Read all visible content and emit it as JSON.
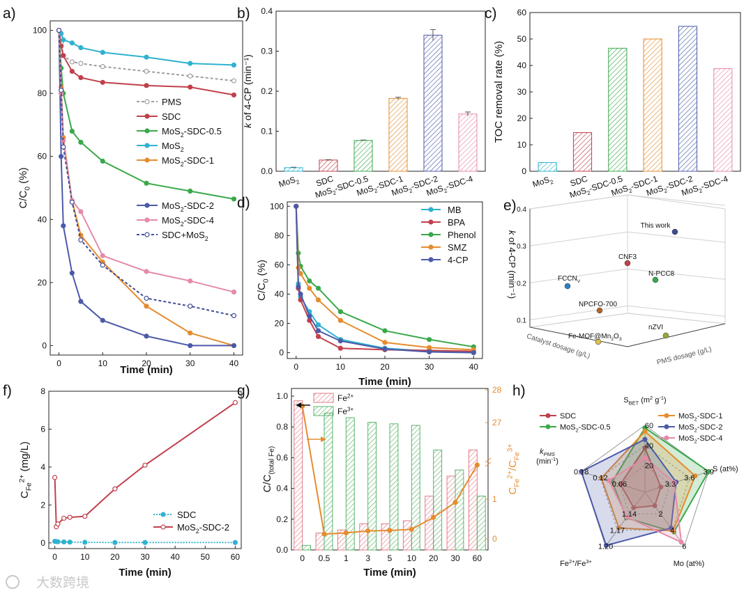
{
  "watermark": "大数跨境",
  "chart_data": [
    {
      "panel": "a)",
      "type": "line",
      "xlabel": "Time (min)",
      "ylabel_parts": [
        "C/C",
        "0",
        " (%)"
      ],
      "xlim": [
        -2,
        42
      ],
      "ylim": [
        -3,
        103
      ],
      "xticks": [
        0,
        10,
        20,
        30,
        40
      ],
      "yticks": [
        0,
        20,
        40,
        60,
        80,
        100
      ],
      "x": [
        0,
        0.5,
        1,
        3,
        5,
        10,
        20,
        30,
        40
      ],
      "series": [
        {
          "name": "PMS",
          "color": "#9e9e9e",
          "dashed": true,
          "hollow": true,
          "values": [
            100,
            96,
            92,
            90,
            89.5,
            88.5,
            87,
            85.5,
            84
          ]
        },
        {
          "name": "SDC",
          "color": "#c0404b",
          "values": [
            100,
            95,
            92,
            87,
            85,
            83.5,
            82.5,
            82,
            79.5
          ]
        },
        {
          "name": "MoS2-SDC-0.5",
          "color": "#3aa84a",
          "values": [
            100,
            88,
            80,
            68,
            64.5,
            58.5,
            51.5,
            49,
            46.5
          ]
        },
        {
          "name": "MoS2",
          "color": "#2fb2cf",
          "values": [
            100,
            99,
            97,
            96,
            94.5,
            93,
            91.5,
            89.5,
            89
          ]
        },
        {
          "name": "MoS2-SDC-1",
          "color": "#e58c2e",
          "values": [
            100,
            82,
            66,
            46,
            35,
            26.5,
            12.5,
            4,
            0
          ]
        },
        {
          "name": "MoS2-SDC-2",
          "color": "#4c5aa8",
          "values": [
            100,
            60,
            38,
            23,
            14,
            8,
            3,
            0,
            0
          ]
        },
        {
          "name": "MoS2-SDC-4",
          "color": "#e58aa8",
          "values": [
            100,
            80,
            65,
            46,
            42.5,
            28.5,
            23.5,
            20.5,
            17
          ]
        },
        {
          "name": "SDC+MoS2",
          "color": "#3e4c95",
          "dashed": true,
          "hollow": true,
          "values": [
            100,
            81,
            63,
            45.5,
            33.5,
            25.5,
            15,
            12.5,
            9.5
          ]
        }
      ],
      "legend_upper": [
        {
          "name": "PMS",
          "display": [
            "PMS"
          ]
        },
        {
          "name": "SDC",
          "display": [
            "SDC"
          ]
        },
        {
          "name": "MoS2-SDC-0.5",
          "display": [
            "MoS",
            "2",
            "-SDC-0.5"
          ]
        },
        {
          "name": "MoS2",
          "display": [
            "MoS",
            "2"
          ]
        },
        {
          "name": "MoS2-SDC-1",
          "display": [
            "MoS",
            "2",
            "-SDC-1"
          ]
        }
      ],
      "legend_lower": [
        {
          "name": "MoS2-SDC-2",
          "display": [
            "MoS",
            "2",
            "-SDC-2"
          ]
        },
        {
          "name": "MoS2-SDC-4",
          "display": [
            "MoS",
            "2",
            "-SDC-4"
          ]
        },
        {
          "name": "SDC+MoS2",
          "display": [
            "SDC+MoS",
            "2"
          ]
        }
      ]
    },
    {
      "panel": "b)",
      "type": "bar",
      "ylabel": "k of 4-CP (min⁻¹)",
      "ylim": [
        0,
        0.4
      ],
      "yticks": [
        0.0,
        0.1,
        0.2,
        0.3,
        0.4
      ],
      "categories": [
        "MoS2",
        "SDC",
        "MoS2-SDC-0.5",
        "MoS2-SDC-1",
        "MoS2-SDC-2",
        "MoS2-SDC-4"
      ],
      "category_labels": [
        [
          "MoS",
          "2"
        ],
        [
          "SDC"
        ],
        [
          "MoS",
          "2",
          "-SDC-0.5"
        ],
        [
          "MoS",
          "2",
          "-SDC-1"
        ],
        [
          "MoS",
          "2",
          "-SDC-2"
        ],
        [
          "MoS",
          "2",
          "-SDC-4"
        ]
      ],
      "values": [
        0.009,
        0.028,
        0.077,
        0.182,
        0.34,
        0.143
      ],
      "errors": [
        0.001,
        0.001,
        0.001,
        0.003,
        0.014,
        0.005
      ],
      "colors": [
        "#2fb2cf",
        "#c0404b",
        "#3aa84a",
        "#e58c2e",
        "#4c5aa8",
        "#e58aa8"
      ]
    },
    {
      "panel": "c)",
      "type": "bar",
      "ylabel": "TOC removal rate (%)",
      "ylim": [
        0,
        60
      ],
      "yticks": [
        0,
        10,
        20,
        30,
        40,
        50,
        60
      ],
      "categories": [
        "MoS2",
        "SDC",
        "MoS2-SDC-0.5",
        "MoS2-SDC-1",
        "MoS2-SDC-2",
        "MoS2-SDC-4"
      ],
      "category_labels": [
        [
          "MoS",
          "2"
        ],
        [
          "SDC"
        ],
        [
          "MoS",
          "2",
          "-SDC-0.5"
        ],
        [
          "MoS",
          "2",
          "-SDC-1"
        ],
        [
          "MoS",
          "2",
          "-SDC-2"
        ],
        [
          "MoS",
          "2",
          "-SDC-4"
        ]
      ],
      "values": [
        3.3,
        14.6,
        46.5,
        50,
        54.8,
        38.8
      ],
      "colors": [
        "#2fb2cf",
        "#c0404b",
        "#3aa84a",
        "#e58c2e",
        "#4c5aa8",
        "#e58aa8"
      ]
    },
    {
      "panel": "d)",
      "type": "line",
      "xlabel": "Time (min)",
      "ylabel_parts": [
        "C/C",
        "0",
        " (%)"
      ],
      "xlim": [
        -2,
        42
      ],
      "ylim": [
        -4,
        103
      ],
      "xticks": [
        0,
        10,
        20,
        30,
        40
      ],
      "yticks": [
        0,
        20,
        40,
        60,
        80,
        100
      ],
      "x": [
        0,
        0.5,
        1,
        3,
        5,
        10,
        20,
        30,
        40
      ],
      "series": [
        {
          "name": "MB",
          "color": "#2fb2cf",
          "values": [
            100,
            47,
            38,
            28,
            19,
            9,
            3,
            1,
            0.5
          ]
        },
        {
          "name": "BPA",
          "color": "#c0404b",
          "values": [
            100,
            44,
            36,
            22,
            11,
            3,
            2,
            1.5,
            1
          ]
        },
        {
          "name": "Phenol",
          "color": "#3aa84a",
          "values": [
            100,
            68,
            59,
            49,
            44,
            28,
            15,
            9,
            4
          ]
        },
        {
          "name": "SMZ",
          "color": "#e58c2e",
          "values": [
            100,
            58,
            54,
            44,
            36,
            22,
            7,
            3.5,
            2
          ]
        },
        {
          "name": "4-CP",
          "color": "#4c5aa8",
          "values": [
            100,
            45,
            40,
            25,
            15,
            8,
            2.5,
            0.5,
            0
          ]
        }
      ]
    },
    {
      "panel": "e)",
      "type": "scatter",
      "zlabel": "k of 4-CP (min⁻¹)",
      "xlabel": "Catalyst dosage (g/L)",
      "ylabel": "PMS dosage (g/L)",
      "zticks": [
        0.1,
        0.2,
        0.3,
        0.4
      ],
      "points": [
        {
          "name": "This work",
          "color": "#3e4c95"
        },
        {
          "name": "CNF3",
          "color": "#c0404b"
        },
        {
          "name": "FCCN",
          "sub": "V",
          "color": "#2f7fc0"
        },
        {
          "name": "N-PCC8",
          "color": "#3aa84a"
        },
        {
          "name": "NPCFO-700",
          "color": "#b5652a"
        },
        {
          "name": "Fe-MOF@Mn",
          "sub": "2",
          "suffix": "O",
          "sub2": "3",
          "color": "#d9c04a"
        },
        {
          "name": "nZVI",
          "color": "#9aa83c"
        }
      ]
    },
    {
      "panel": "f)",
      "type": "line",
      "xlabel": "Time (min)",
      "ylabel_parts": [
        "C",
        "Fe",
        "2+",
        " (mg/L)"
      ],
      "xlim": [
        -2,
        62
      ],
      "ylim": [
        -0.3,
        8
      ],
      "xticks": [
        0,
        10,
        20,
        30,
        40,
        50,
        60
      ],
      "yticks": [
        0,
        2,
        4,
        6,
        8
      ],
      "x": [
        0,
        0.5,
        1,
        3,
        5,
        10,
        20,
        30,
        60
      ],
      "series": [
        {
          "name": "SDC",
          "color": "#2fb2cf",
          "dotted": true,
          "values": [
            0.08,
            0.07,
            0.06,
            0.05,
            0.04,
            0.03,
            0.02,
            0.02,
            0.02
          ]
        },
        {
          "name": "MoS2-SDC-2",
          "display": [
            "MoS",
            "2",
            "-SDC-2"
          ],
          "color": "#c0404b",
          "hollow": true,
          "values": [
            3.45,
            0.85,
            1.0,
            1.3,
            1.35,
            1.4,
            2.85,
            4.1,
            7.4
          ]
        }
      ]
    },
    {
      "panel": "g)",
      "type": "bar",
      "xlabel": "Time (min)",
      "ylabel_parts": [
        "C/C",
        "(total Fe)"
      ],
      "ylabel_right_parts": [
        "C",
        "Fe",
        "2+",
        "/C",
        "Fe",
        "3+"
      ],
      "categories": [
        "0",
        "0.5",
        "1",
        "3",
        "5",
        "10",
        "20",
        "30",
        "60"
      ],
      "ylim": [
        0,
        1.05
      ],
      "yticks": [
        0.0,
        0.2,
        0.4,
        0.6,
        0.8,
        1.0
      ],
      "right_ticks": [
        "0",
        "1",
        "27",
        "28"
      ],
      "series": [
        {
          "name": "Fe2+",
          "display": [
            "Fe",
            "2+"
          ],
          "color": "#e27a88",
          "values": [
            0.97,
            0.11,
            0.13,
            0.17,
            0.17,
            0.19,
            0.35,
            0.48,
            0.65
          ]
        },
        {
          "name": "Fe3+",
          "display": [
            "Fe",
            "3+"
          ],
          "color": "#5ab36a",
          "values": [
            0.03,
            0.89,
            0.86,
            0.83,
            0.82,
            0.81,
            0.65,
            0.52,
            0.35
          ]
        }
      ],
      "ratio": {
        "name": "Fe2+/Fe3+",
        "color": "#e58c2e",
        "values": [
          27.5,
          0.12,
          0.15,
          0.2,
          0.21,
          0.24,
          0.54,
          0.92,
          1.86
        ]
      }
    },
    {
      "panel": "h)",
      "type": "radar",
      "axes": [
        {
          "name": "S_BET (m2 g-1)",
          "display": [
            "S",
            "BET",
            " (m",
            "2",
            " g",
            "-1",
            ")"
          ],
          "ticks": [
            "20",
            "40",
            "60"
          ]
        },
        {
          "name": "S (at%)",
          "display": [
            "S (at%)"
          ],
          "ticks": [
            "3.3",
            "3.6",
            "3.9"
          ]
        },
        {
          "name": "Mo (at%)",
          "display": [
            "Mo (at%)"
          ],
          "ticks": [
            "2",
            "4",
            "6"
          ]
        },
        {
          "name": "Fe2+/Fe3+",
          "display": [
            "Fe",
            "2+",
            "/Fe",
            "3+"
          ],
          "ticks": [
            "1.14",
            "1.17",
            "1.20"
          ]
        },
        {
          "name": "k_PMS (min-1)",
          "display": [
            "k",
            "PMS",
            "(min",
            "-1",
            ")"
          ],
          "ticks": [
            "0.06",
            "0.12",
            "0.18"
          ]
        }
      ],
      "series": [
        {
          "name": "SDC",
          "display": [
            "SDC"
          ],
          "color": "#c0404b",
          "values": [
            0.55,
            0.0,
            0.0,
            0.05,
            0.18
          ]
        },
        {
          "name": "MoS2-SDC-0.5",
          "display": [
            "MoS",
            "2",
            "-SDC-0.5"
          ],
          "color": "#3aa84a",
          "values": [
            0.95,
            1.0,
            0.65,
            0.3,
            0.35
          ]
        },
        {
          "name": "MoS2-SDC-1",
          "display": [
            "MoS",
            "2",
            "-SDC-1"
          ],
          "color": "#e58c2e",
          "values": [
            0.88,
            0.72,
            0.62,
            0.55,
            0.58
          ]
        },
        {
          "name": "MoS2-SDC-2",
          "display": [
            "MoS",
            "2",
            "-SDC-2"
          ],
          "color": "#4c5aa8",
          "values": [
            0.72,
            0.32,
            0.55,
            0.98,
            1.0
          ]
        },
        {
          "name": "MoS2-SDC-4",
          "display": [
            "MoS",
            "2",
            "-SDC-4"
          ],
          "color": "#e58aa8",
          "values": [
            0.35,
            0.28,
            0.9,
            0.28,
            0.42
          ]
        }
      ]
    }
  ]
}
